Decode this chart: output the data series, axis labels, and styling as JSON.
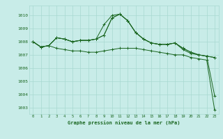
{
  "title": "Graphe pression niveau de la mer (hPa)",
  "bg_color": "#c8ece8",
  "grid_color": "#a8d8d0",
  "line_color": "#1a6620",
  "x_labels": [
    "0",
    "1",
    "2",
    "3",
    "4",
    "5",
    "6",
    "7",
    "8",
    "9",
    "10",
    "11",
    "12",
    "13",
    "14",
    "15",
    "16",
    "17",
    "18",
    "19",
    "20",
    "21",
    "22",
    "23"
  ],
  "series": [
    [
      1008.0,
      1007.6,
      1007.7,
      1008.3,
      1008.2,
      1008.0,
      1008.1,
      1008.1,
      1008.2,
      1009.3,
      1010.0,
      1010.1,
      1009.6,
      1008.7,
      1008.2,
      1007.9,
      1007.8,
      1007.8,
      1007.9,
      1007.5,
      1007.2,
      1007.0,
      1006.9,
      1006.8
    ],
    [
      1008.0,
      1007.6,
      1007.7,
      1008.3,
      1008.2,
      1008.0,
      1008.1,
      1008.1,
      1008.2,
      1008.5,
      1009.8,
      1010.1,
      1009.6,
      1008.7,
      1008.2,
      1007.9,
      1007.8,
      1007.8,
      1007.9,
      1007.5,
      1007.2,
      1007.0,
      1006.9,
      1006.8
    ],
    [
      1008.0,
      1007.6,
      1007.7,
      1008.3,
      1008.2,
      1008.0,
      1008.1,
      1008.1,
      1008.2,
      1008.5,
      1009.8,
      1010.1,
      1009.6,
      1008.7,
      1008.2,
      1007.9,
      1007.8,
      1007.8,
      1007.9,
      1007.4,
      1007.1,
      1007.0,
      1006.9,
      1003.9
    ],
    [
      1008.0,
      1007.6,
      1007.7,
      1007.5,
      1007.4,
      1007.3,
      1007.3,
      1007.2,
      1007.2,
      1007.3,
      1007.4,
      1007.5,
      1007.5,
      1007.5,
      1007.4,
      1007.3,
      1007.2,
      1007.1,
      1007.0,
      1007.0,
      1006.8,
      1006.7,
      1006.6,
      1002.8
    ]
  ],
  "ylim": [
    1002.5,
    1010.75
  ],
  "yticks": [
    1003,
    1004,
    1005,
    1006,
    1007,
    1008,
    1009,
    1010
  ],
  "figsize": [
    3.2,
    2.0
  ],
  "dpi": 100
}
